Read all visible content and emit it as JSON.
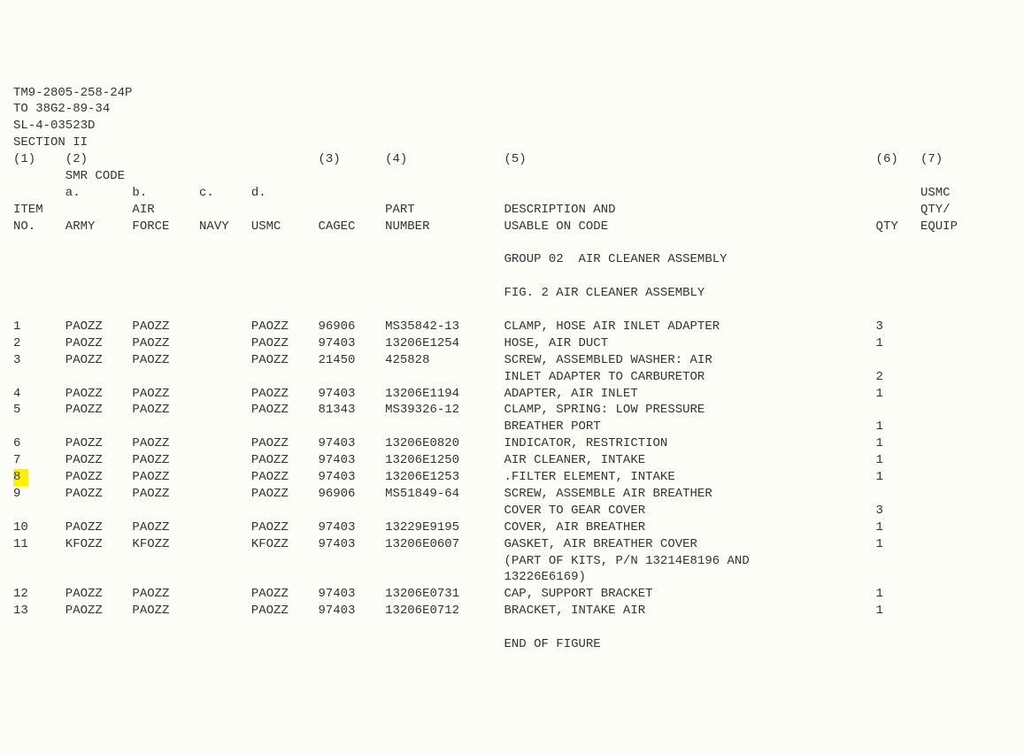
{
  "header": {
    "line1": "TM9-2805-258-24P",
    "line2": "TO 38G2-89-34",
    "line3": "SL-4-03523D",
    "line4": "SECTION II"
  },
  "colNums": {
    "c1": "(1)",
    "c2": "(2)",
    "c3": "(3)",
    "c4": "(4)",
    "c5": "(5)",
    "c6": "(6)",
    "c7": "(7)"
  },
  "smrLabel": "SMR CODE",
  "subcols": {
    "a": "a.",
    "b": "b.",
    "c": "c.",
    "d": "d.",
    "usmc": "USMC"
  },
  "headers": {
    "item": "ITEM",
    "air": "AIR",
    "part": "PART",
    "descAnd": "DESCRIPTION AND",
    "qtyslash": "QTY/"
  },
  "headers2": {
    "no": "NO.",
    "army": "ARMY",
    "force": "FORCE",
    "navy": "NAVY",
    "usmc": "USMC",
    "cagec": "CAGEC",
    "number": "NUMBER",
    "usable": "USABLE ON CODE",
    "qty": "QTY",
    "equip": "EQUIP"
  },
  "groupLine": "GROUP 02  AIR CLEANER ASSEMBLY",
  "figLine": "FIG. 2 AIR CLEANER ASSEMBLY",
  "rows": [
    {
      "item": "1",
      "army": "PAOZZ",
      "force": "PAOZZ",
      "navy": "",
      "usmc": "PAOZZ",
      "cagec": "96906",
      "part": "MS35842-13",
      "desc": "CLAMP, HOSE AIR INLET ADAPTER",
      "qty": "3"
    },
    {
      "item": "2",
      "army": "PAOZZ",
      "force": "PAOZZ",
      "navy": "",
      "usmc": "PAOZZ",
      "cagec": "97403",
      "part": "13206E1254",
      "desc": "HOSE, AIR DUCT",
      "qty": "1"
    },
    {
      "item": "3",
      "army": "PAOZZ",
      "force": "PAOZZ",
      "navy": "",
      "usmc": "PAOZZ",
      "cagec": "21450",
      "part": "425828",
      "desc": "SCREW, ASSEMBLED WASHER: AIR",
      "qty": ""
    },
    {
      "item": "",
      "army": "",
      "force": "",
      "navy": "",
      "usmc": "",
      "cagec": "",
      "part": "",
      "desc": "INLET ADAPTER TO CARBURETOR",
      "qty": "2"
    },
    {
      "item": "4",
      "army": "PAOZZ",
      "force": "PAOZZ",
      "navy": "",
      "usmc": "PAOZZ",
      "cagec": "97403",
      "part": "13206E1194",
      "desc": "ADAPTER, AIR INLET",
      "qty": "1"
    },
    {
      "item": "5",
      "army": "PAOZZ",
      "force": "PAOZZ",
      "navy": "",
      "usmc": "PAOZZ",
      "cagec": "81343",
      "part": "MS39326-12",
      "desc": "CLAMP, SPRING: LOW PRESSURE",
      "qty": ""
    },
    {
      "item": "",
      "army": "",
      "force": "",
      "navy": "",
      "usmc": "",
      "cagec": "",
      "part": "",
      "desc": "BREATHER PORT",
      "qty": "1"
    },
    {
      "item": "6",
      "army": "PAOZZ",
      "force": "PAOZZ",
      "navy": "",
      "usmc": "PAOZZ",
      "cagec": "97403",
      "part": "13206E0820",
      "desc": "INDICATOR, RESTRICTION",
      "qty": "1"
    },
    {
      "item": "7",
      "army": "PAOZZ",
      "force": "PAOZZ",
      "navy": "",
      "usmc": "PAOZZ",
      "cagec": "97403",
      "part": "13206E1250",
      "desc": "AIR CLEANER, INTAKE",
      "qty": "1"
    },
    {
      "item": "8",
      "army": "PAOZZ",
      "force": "PAOZZ",
      "navy": "",
      "usmc": "PAOZZ",
      "cagec": "97403",
      "part": "13206E1253",
      "desc": ".FILTER ELEMENT, INTAKE",
      "qty": "1",
      "hl": true
    },
    {
      "item": "9",
      "army": "PAOZZ",
      "force": "PAOZZ",
      "navy": "",
      "usmc": "PAOZZ",
      "cagec": "96906",
      "part": "MS51849-64",
      "desc": "SCREW, ASSEMBLE AIR BREATHER",
      "qty": ""
    },
    {
      "item": "",
      "army": "",
      "force": "",
      "navy": "",
      "usmc": "",
      "cagec": "",
      "part": "",
      "desc": "COVER TO GEAR COVER",
      "qty": "3"
    },
    {
      "item": "10",
      "army": "PAOZZ",
      "force": "PAOZZ",
      "navy": "",
      "usmc": "PAOZZ",
      "cagec": "97403",
      "part": "13229E9195",
      "desc": "COVER, AIR BREATHER",
      "qty": "1"
    },
    {
      "item": "11",
      "army": "KFOZZ",
      "force": "KFOZZ",
      "navy": "",
      "usmc": "KFOZZ",
      "cagec": "97403",
      "part": "13206E0607",
      "desc": "GASKET, AIR BREATHER COVER",
      "qty": "1"
    },
    {
      "item": "",
      "army": "",
      "force": "",
      "navy": "",
      "usmc": "",
      "cagec": "",
      "part": "",
      "desc": "(PART OF KITS, P/N 13214E8196 AND",
      "qty": ""
    },
    {
      "item": "",
      "army": "",
      "force": "",
      "navy": "",
      "usmc": "",
      "cagec": "",
      "part": "",
      "desc": "13226E6169)",
      "qty": ""
    },
    {
      "item": "12",
      "army": "PAOZZ",
      "force": "PAOZZ",
      "navy": "",
      "usmc": "PAOZZ",
      "cagec": "97403",
      "part": "13206E0731",
      "desc": "CAP, SUPPORT BRACKET",
      "qty": "1"
    },
    {
      "item": "13",
      "army": "PAOZZ",
      "force": "PAOZZ",
      "navy": "",
      "usmc": "PAOZZ",
      "cagec": "97403",
      "part": "13206E0712",
      "desc": "BRACKET, INTAKE AIR",
      "qty": "1"
    }
  ],
  "endLine": "END OF FIGURE",
  "layout": {
    "colItem": 0,
    "colArmy": 7,
    "colForce": 16,
    "colNavy": 25,
    "colUsmc": 32,
    "colCagec": 41,
    "colPart": 50,
    "colDesc": 66,
    "colQty": 116,
    "colEquip": 122
  }
}
